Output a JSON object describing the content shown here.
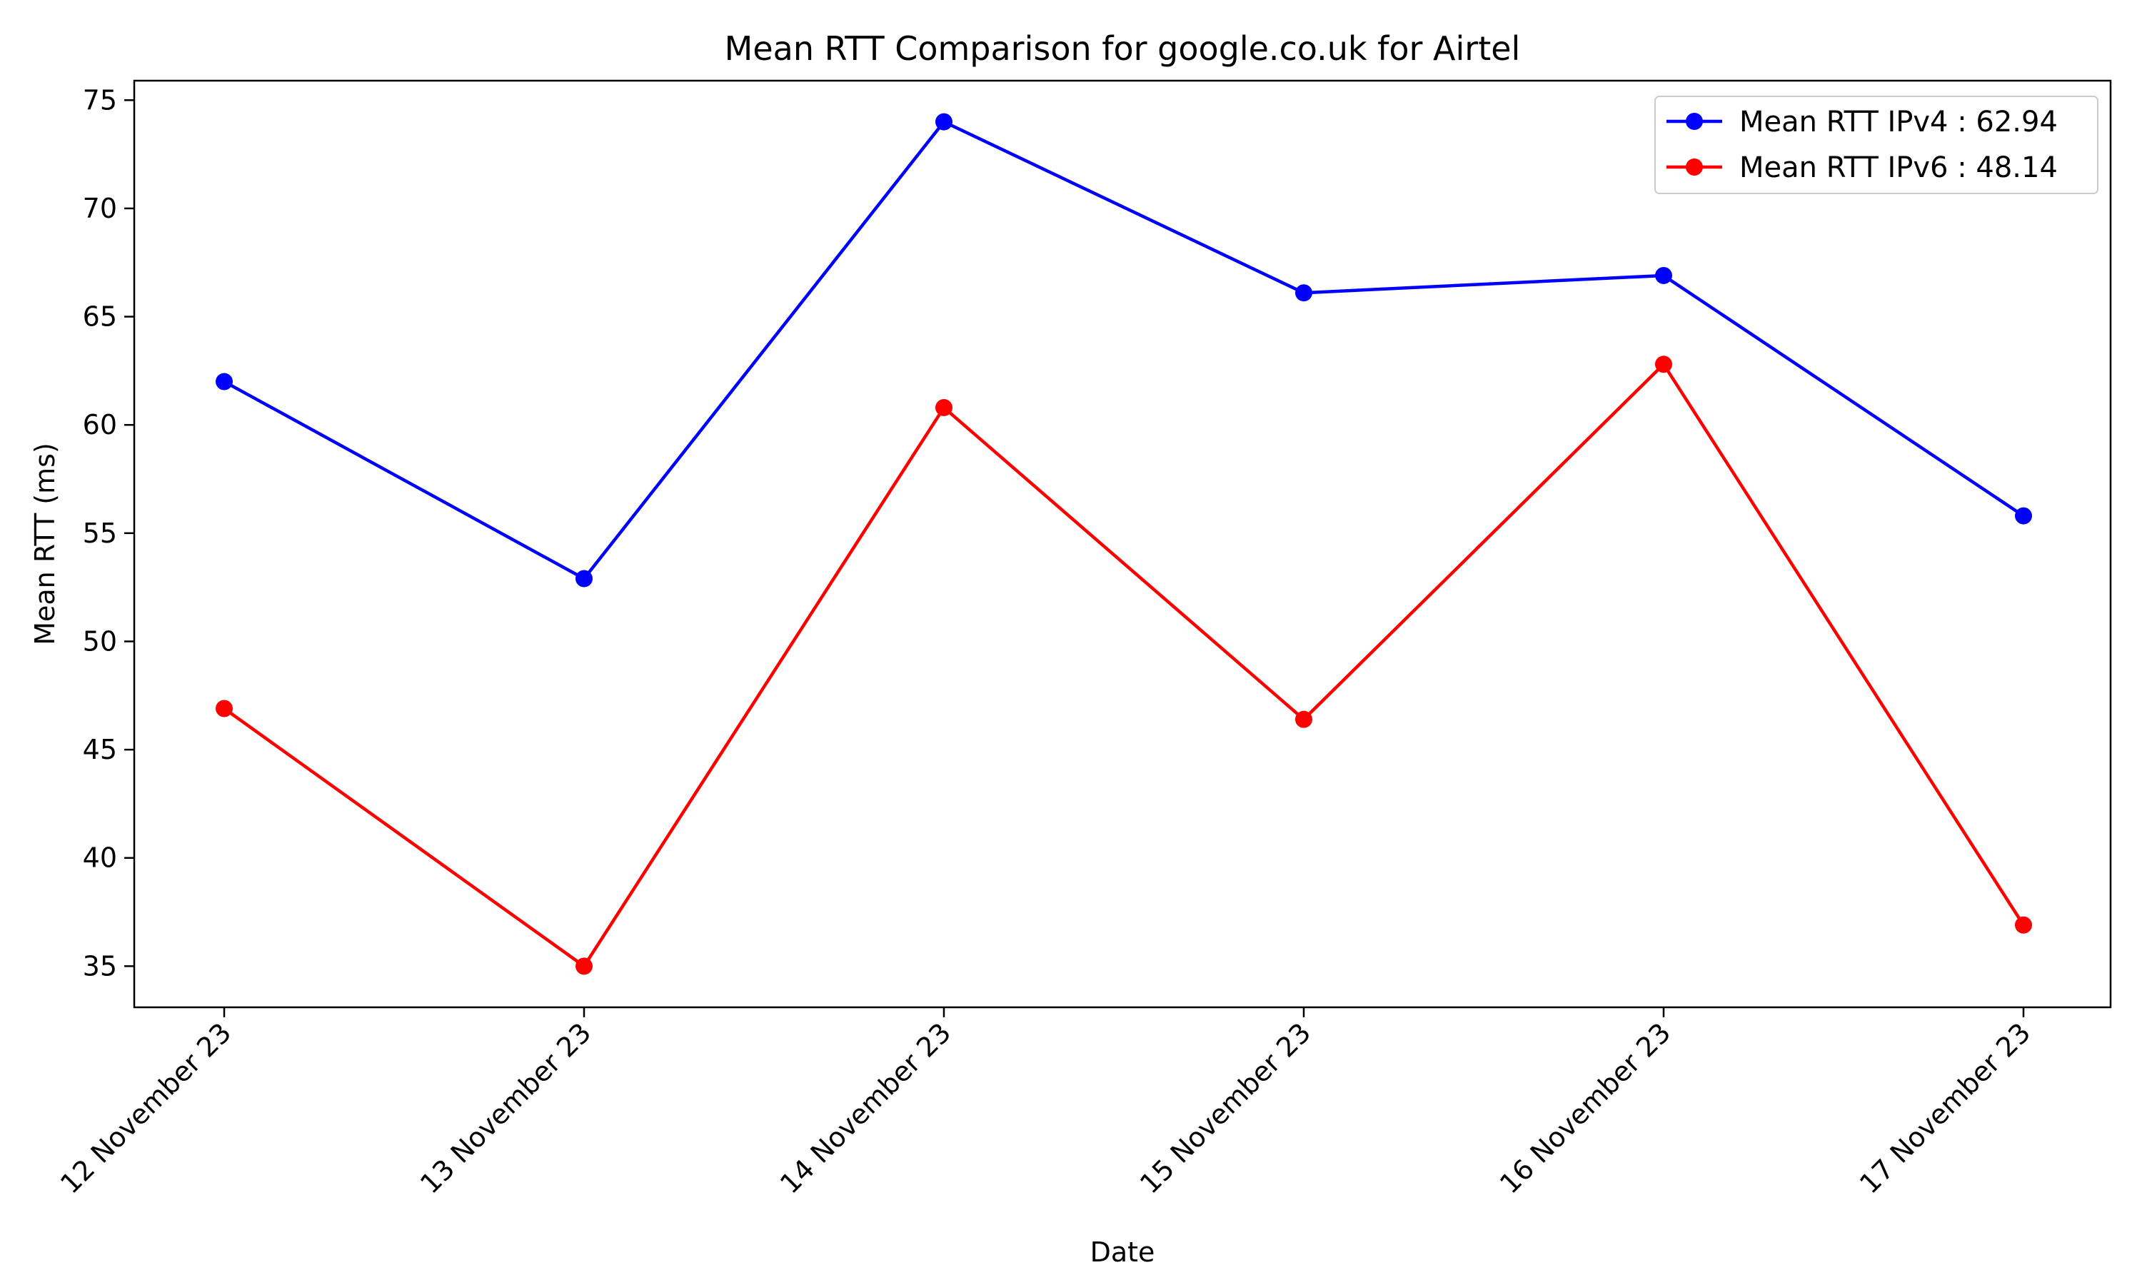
{
  "chart_data": {
    "type": "line",
    "title": "Mean RTT Comparison for google.co.uk for Airtel",
    "xlabel": "Date",
    "ylabel": "Mean RTT (ms)",
    "categories": [
      "12 November 23",
      "13 November 23",
      "14 November 23",
      "15 November 23",
      "16 November 23",
      "17 November 23"
    ],
    "ylim": [
      33.1,
      75.9
    ],
    "yticks": [
      35,
      40,
      45,
      50,
      55,
      60,
      65,
      70,
      75
    ],
    "grid": false,
    "legend_position": "top-right",
    "series": [
      {
        "name": "Mean RTT IPv4 : 62.94",
        "color": "#0000ff",
        "marker": "circle",
        "values": [
          62.0,
          52.9,
          74.0,
          66.1,
          66.9,
          55.8
        ]
      },
      {
        "name": "Mean RTT IPv6 : 48.14",
        "color": "#ff0000",
        "marker": "circle",
        "values": [
          46.9,
          35.0,
          60.8,
          46.4,
          62.8,
          36.9
        ]
      }
    ]
  }
}
